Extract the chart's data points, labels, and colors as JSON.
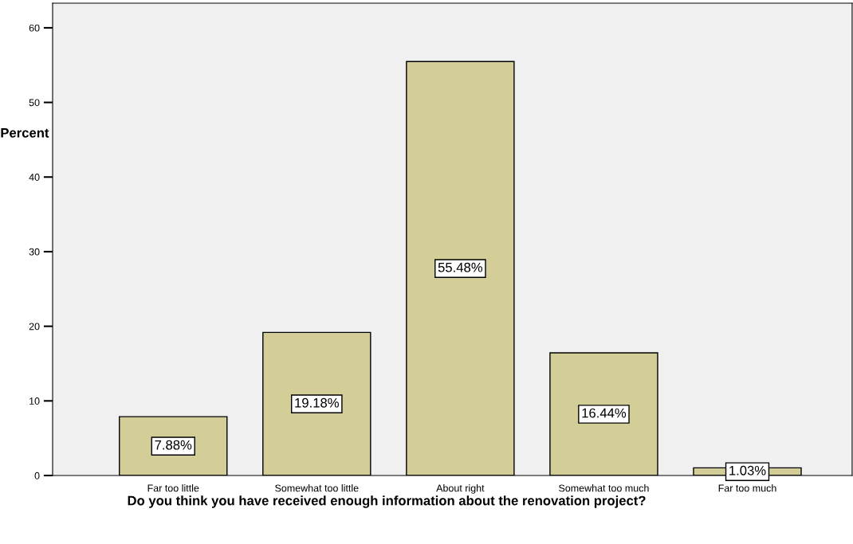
{
  "chart_data": {
    "type": "bar",
    "xlabel": "Do you think you have received enough information about the renovation project?",
    "ylabel": "Percent",
    "categories": [
      "Far too little",
      "Somewhat too little",
      "About right",
      "Somewhat too much",
      "Far too much"
    ],
    "values": [
      7.88,
      19.18,
      55.48,
      16.44,
      1.03
    ],
    "value_labels": [
      "7.88%",
      "19.18%",
      "55.48%",
      "16.44%",
      "1.03%"
    ],
    "color": "#d3ce97",
    "ylim": [
      0,
      63.3
    ],
    "yticks": [
      0,
      10,
      20,
      30,
      40,
      50,
      60
    ],
    "grid": false,
    "legend": false
  }
}
